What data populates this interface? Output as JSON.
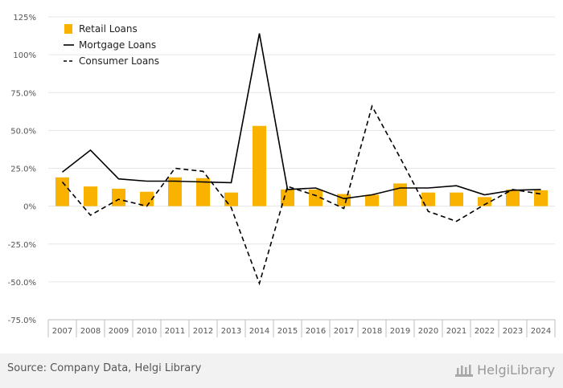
{
  "colors": {
    "bar": "#F9B200",
    "mortgage": "#000000",
    "consumer": "#000000",
    "grid": "#e6e6e6",
    "axis": "#bfbfbf",
    "tick_text": "#555555"
  },
  "chart_data": {
    "type": "bar",
    "title": "",
    "xlabel": "",
    "ylabel": "",
    "ylim": [
      -75,
      125
    ],
    "yticks": [
      -75,
      -50,
      -25,
      0,
      25,
      50,
      75,
      100,
      125
    ],
    "ytick_labels": [
      "-75.0%",
      "-50.0%",
      "-25.0%",
      "0%",
      "25.0%",
      "50.0%",
      "75.0%",
      "100%",
      "125%"
    ],
    "categories": [
      "2007",
      "2008",
      "2009",
      "2010",
      "2011",
      "2012",
      "2013",
      "2014",
      "2015",
      "2016",
      "2017",
      "2018",
      "2019",
      "2020",
      "2021",
      "2022",
      "2023",
      "2024"
    ],
    "grid": true,
    "legend_position": "top-left",
    "series": [
      {
        "name": "Retail Loans",
        "type": "bar",
        "values": [
          19,
          13,
          11.5,
          9.5,
          19,
          18.5,
          9,
          53,
          11,
          11,
          8,
          7.5,
          15,
          9,
          9,
          6,
          11,
          10.5
        ]
      },
      {
        "name": "Mortgage Loans",
        "type": "line",
        "style": "solid",
        "values": [
          22.5,
          37,
          18,
          16.5,
          16.5,
          16,
          15.5,
          114,
          11,
          12,
          5,
          7.5,
          12,
          12,
          13.5,
          7.5,
          10.5,
          11
        ]
      },
      {
        "name": "Consumer Loans",
        "type": "line",
        "style": "dashed",
        "values": [
          16,
          -6,
          4.5,
          0,
          25,
          23,
          -1,
          -51,
          13,
          7,
          -1.5,
          66,
          32,
          -3.5,
          -10,
          1,
          11,
          8
        ]
      }
    ]
  },
  "footer": {
    "source": "Source: Company Data, Helgi Library",
    "logo_text": "HelgiLibrary"
  }
}
